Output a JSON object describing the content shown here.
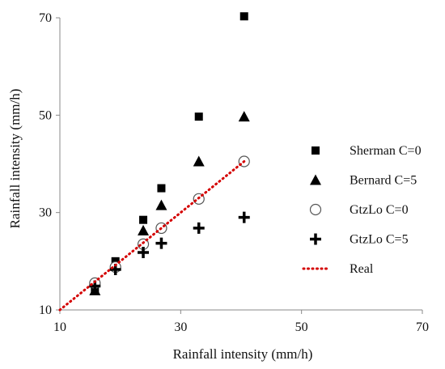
{
  "chart_data": {
    "type": "scatter",
    "title": "",
    "xlabel": "Rainfall intensity (mm/h)",
    "ylabel": "Rainfall intensity (mm/h)",
    "xlim": [
      10,
      70
    ],
    "ylim": [
      10,
      70
    ],
    "x_ticks": [
      "10",
      "30",
      "50",
      "70"
    ],
    "y_ticks": [
      "10",
      "30",
      "50",
      "70"
    ],
    "grid": false,
    "legend_position": "right",
    "series": [
      {
        "name": "Sherman C=0",
        "marker": "square",
        "color": "#000000",
        "points": [
          [
            15.8,
            14.0
          ],
          [
            19.2,
            20.0
          ],
          [
            23.8,
            28.5
          ],
          [
            26.8,
            35.0
          ],
          [
            33.0,
            49.7
          ],
          [
            40.5,
            70.3
          ]
        ]
      },
      {
        "name": "Bernard C=5",
        "marker": "triangle",
        "color": "#000000",
        "points": [
          [
            15.8,
            14.0
          ],
          [
            19.2,
            19.3
          ],
          [
            23.8,
            26.3
          ],
          [
            26.8,
            31.5
          ],
          [
            33.0,
            40.5
          ],
          [
            40.5,
            49.7
          ]
        ]
      },
      {
        "name": "GtzLo C=0",
        "marker": "circle-open",
        "color": "#000000",
        "points": [
          [
            15.8,
            15.5
          ],
          [
            19.2,
            18.8
          ],
          [
            23.8,
            23.5
          ],
          [
            26.8,
            26.8
          ],
          [
            33.0,
            32.8
          ],
          [
            40.5,
            40.5
          ]
        ]
      },
      {
        "name": "GtzLo C=5",
        "marker": "plus",
        "color": "#000000",
        "points": [
          [
            15.8,
            14.9
          ],
          [
            19.2,
            18.3
          ],
          [
            23.8,
            21.8
          ],
          [
            26.8,
            23.7
          ],
          [
            33.0,
            26.8
          ],
          [
            40.5,
            29.0
          ]
        ]
      },
      {
        "name": "Real",
        "marker": "dotted-line",
        "color": "#d40000",
        "points": [
          [
            10,
            10
          ],
          [
            40.5,
            40.5
          ]
        ]
      }
    ]
  }
}
